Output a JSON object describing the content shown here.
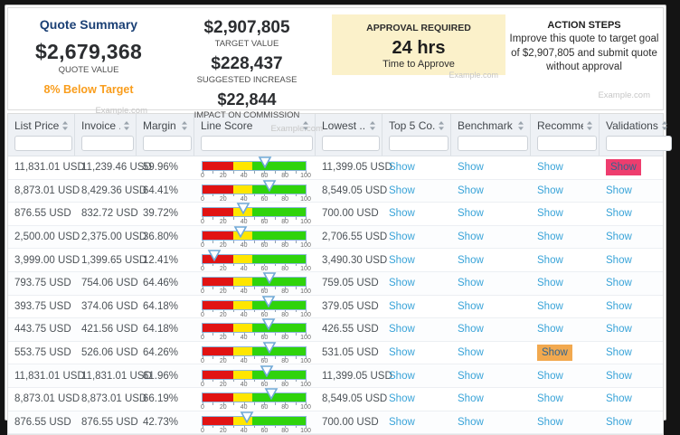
{
  "top": {
    "quote_summary": {
      "title": "Quote Summary",
      "value": "$2,679,368",
      "value_label": "QUOTE VALUE",
      "delta": "8% Below Target",
      "watermark": "Example.com"
    },
    "metrics": [
      {
        "value": "$2,907,805",
        "label": "TARGET VALUE"
      },
      {
        "value": "$228,437",
        "label": "SUGGESTED INCREASE"
      },
      {
        "value": "$22,844",
        "label": "IMPACT ON COMMISSION"
      }
    ],
    "metrics_watermark": "Example.com",
    "approval": {
      "title": "APPROVAL REQUIRED",
      "time": "24 hrs",
      "subtitle": "Time to Approve",
      "watermark": "Example.com",
      "bg_color": "#fbf1ca"
    },
    "action_steps": {
      "title": "ACTION STEPS",
      "body": "Improve this quote to target goal of $2,907,805 and submit quote without approval",
      "watermark": "Example.com"
    }
  },
  "table": {
    "columns": [
      {
        "label": "List Price",
        "field": "list_price"
      },
      {
        "label": "Invoice ...",
        "field": "invoice"
      },
      {
        "label": "Margin %",
        "field": "margin"
      },
      {
        "label": "Line Score",
        "field": "line_score"
      },
      {
        "label": "Lowest ...",
        "field": "lowest"
      },
      {
        "label": "Top 5 Co...",
        "field": "top5"
      },
      {
        "label": "Benchmark",
        "field": "benchmark"
      },
      {
        "label": "Recomme...",
        "field": "recommendations"
      },
      {
        "label": "Validations",
        "field": "validations"
      }
    ],
    "show_label": "Show",
    "filter_placeholder": "",
    "gauge": {
      "ticks": [
        "0",
        "20",
        "40",
        "60",
        "80",
        "100"
      ],
      "segments": [
        {
          "color": "#e11313",
          "from": 0,
          "to": 30
        },
        {
          "color": "#ffe600",
          "from": 30,
          "to": 48
        },
        {
          "color": "#2fd30c",
          "from": 48,
          "to": 100
        }
      ],
      "pointer_fill": "#ffffff",
      "pointer_border": "#6fa8d6"
    },
    "highlight_colors": {
      "validations": "#ee3d6e",
      "recommendations": "#f2a94f"
    },
    "rows": [
      {
        "list_price": "11,831.01 USD",
        "invoice": "11,239.46 USD",
        "margin": "59.96%",
        "score": 59.96,
        "lowest": "11,399.05 USD",
        "highlight": "validations"
      },
      {
        "list_price": "8,873.01 USD",
        "invoice": "8,429.36 USD",
        "margin": "64.41%",
        "score": 64.41,
        "lowest": "8,549.05 USD",
        "highlight": ""
      },
      {
        "list_price": "876.55 USD",
        "invoice": "832.72 USD",
        "margin": "39.72%",
        "score": 39.72,
        "lowest": "700.00 USD",
        "highlight": ""
      },
      {
        "list_price": "2,500.00 USD",
        "invoice": "2,375.00 USD",
        "margin": "36.80%",
        "score": 36.8,
        "lowest": "2,706.55 USD",
        "highlight": ""
      },
      {
        "list_price": "3,999.00 USD",
        "invoice": "1,399.65 USD",
        "margin": "12.41%",
        "score": 12.41,
        "lowest": "3,490.30 USD",
        "highlight": ""
      },
      {
        "list_price": "793.75 USD",
        "invoice": "754.06 USD",
        "margin": "64.46%",
        "score": 64.46,
        "lowest": "759.05 USD",
        "highlight": ""
      },
      {
        "list_price": "393.75 USD",
        "invoice": "374.06 USD",
        "margin": "64.18%",
        "score": 64.18,
        "lowest": "379.05 USD",
        "highlight": ""
      },
      {
        "list_price": "443.75 USD",
        "invoice": "421.56 USD",
        "margin": "64.18%",
        "score": 64.18,
        "lowest": "426.55 USD",
        "highlight": ""
      },
      {
        "list_price": "553.75 USD",
        "invoice": "526.06 USD",
        "margin": "64.26%",
        "score": 64.26,
        "lowest": "531.05 USD",
        "highlight": "recommendations"
      },
      {
        "list_price": "11,831.01 USD",
        "invoice": "11,831.01 USD",
        "margin": "61.96%",
        "score": 61.96,
        "lowest": "11,399.05 USD",
        "highlight": ""
      },
      {
        "list_price": "8,873.01 USD",
        "invoice": "8,873.01 USD",
        "margin": "66.19%",
        "score": 66.19,
        "lowest": "8,549.05 USD",
        "highlight": ""
      },
      {
        "list_price": "876.55 USD",
        "invoice": "876.55 USD",
        "margin": "42.73%",
        "score": 42.73,
        "lowest": "700.00 USD",
        "highlight": ""
      }
    ]
  }
}
